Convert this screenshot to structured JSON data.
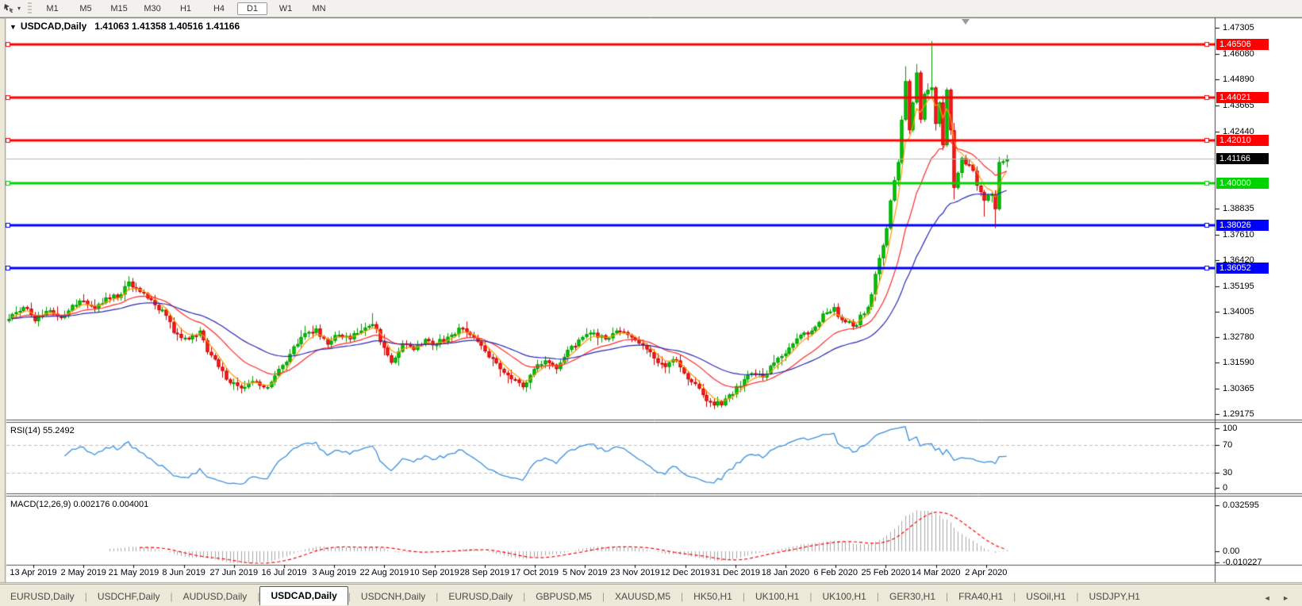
{
  "toolbar": {
    "cursor_tool_caret": "▾",
    "timeframes": [
      {
        "label": "M1",
        "active": false
      },
      {
        "label": "M5",
        "active": false
      },
      {
        "label": "M15",
        "active": false
      },
      {
        "label": "M30",
        "active": false
      },
      {
        "label": "H1",
        "active": false
      },
      {
        "label": "H4",
        "active": false
      },
      {
        "label": "D1",
        "active": true
      },
      {
        "label": "W1",
        "active": false
      },
      {
        "label": "MN",
        "active": false
      }
    ]
  },
  "chart": {
    "header": {
      "dropdown_glyph": "▼",
      "symbol": "USDCAD,Daily",
      "ohlc": "1.41063 1.41358 1.40516 1.41166"
    }
  },
  "indicators": {
    "rsi": {
      "label": "RSI(14) 55.2492"
    },
    "macd": {
      "label": "MACD(12,26,9) 0.002176 0.004001"
    }
  },
  "tabs": {
    "items": [
      {
        "label": "EURUSD,Daily",
        "active": false
      },
      {
        "label": "USDCHF,Daily",
        "active": false
      },
      {
        "label": "AUDUSD,Daily",
        "active": false
      },
      {
        "label": "USDCAD,Daily",
        "active": true
      },
      {
        "label": "USDCNH,Daily",
        "active": false
      },
      {
        "label": "EURUSD,Daily",
        "active": false
      },
      {
        "label": "GBPUSD,M5",
        "active": false
      },
      {
        "label": "XAUUSD,M5",
        "active": false
      },
      {
        "label": "HK50,H1",
        "active": false
      },
      {
        "label": "UK100,H1",
        "active": false
      },
      {
        "label": "UK100,H1",
        "active": false
      },
      {
        "label": "GER30,H1",
        "active": false
      },
      {
        "label": "FRA40,H1",
        "active": false
      },
      {
        "label": "USOil,H1",
        "active": false
      },
      {
        "label": "USDJPY,H1",
        "active": false
      }
    ],
    "nav_arrows": "◄ ►"
  },
  "chart_data": {
    "type": "candlestick",
    "symbol": "USDCAD",
    "timeframe": "Daily",
    "ohlc_display": {
      "open": 1.41063,
      "high": 1.41358,
      "low": 1.40516,
      "close": 1.41166
    },
    "bars": 267,
    "close_keyframes": [
      [
        0,
        1.3365
      ],
      [
        4,
        1.342
      ],
      [
        7,
        1.3355
      ],
      [
        11,
        1.3405
      ],
      [
        14,
        1.337
      ],
      [
        17,
        1.343
      ],
      [
        20,
        1.345
      ],
      [
        23,
        1.3415
      ],
      [
        26,
        1.3465
      ],
      [
        30,
        1.348
      ],
      [
        32,
        1.354
      ],
      [
        34,
        1.351
      ],
      [
        36,
        1.3485
      ],
      [
        39,
        1.343
      ],
      [
        42,
        1.338
      ],
      [
        44,
        1.33
      ],
      [
        48,
        1.327
      ],
      [
        51,
        1.331
      ],
      [
        53,
        1.321
      ],
      [
        56,
        1.314
      ],
      [
        59,
        1.3065
      ],
      [
        62,
        1.304
      ],
      [
        66,
        1.307
      ],
      [
        69,
        1.3045
      ],
      [
        72,
        1.313
      ],
      [
        75,
        1.32
      ],
      [
        78,
        1.328
      ],
      [
        82,
        1.332
      ],
      [
        85,
        1.3245
      ],
      [
        88,
        1.329
      ],
      [
        91,
        1.327
      ],
      [
        94,
        1.331
      ],
      [
        97,
        1.334
      ],
      [
        100,
        1.323
      ],
      [
        102,
        1.316
      ],
      [
        105,
        1.325
      ],
      [
        108,
        1.322
      ],
      [
        111,
        1.327
      ],
      [
        114,
        1.3245
      ],
      [
        118,
        1.329
      ],
      [
        121,
        1.332
      ],
      [
        123,
        1.329
      ],
      [
        126,
        1.324
      ],
      [
        129,
        1.318
      ],
      [
        131,
        1.313
      ],
      [
        135,
        1.308
      ],
      [
        137,
        1.3045
      ],
      [
        140,
        1.313
      ],
      [
        143,
        1.317
      ],
      [
        146,
        1.313
      ],
      [
        149,
        1.322
      ],
      [
        153,
        1.328
      ],
      [
        156,
        1.33
      ],
      [
        159,
        1.327
      ],
      [
        162,
        1.331
      ],
      [
        165,
        1.329
      ],
      [
        168,
        1.325
      ],
      [
        172,
        1.318
      ],
      [
        175,
        1.314
      ],
      [
        178,
        1.317
      ],
      [
        180,
        1.311
      ],
      [
        183,
        1.306
      ],
      [
        186,
        1.298
      ],
      [
        190,
        1.296
      ],
      [
        192,
        1.301
      ],
      [
        195,
        1.305
      ],
      [
        198,
        1.311
      ],
      [
        201,
        1.309
      ],
      [
        204,
        1.316
      ],
      [
        208,
        1.323
      ],
      [
        211,
        1.329
      ],
      [
        214,
        1.331
      ],
      [
        217,
        1.339
      ],
      [
        220,
        1.342
      ],
      [
        222,
        1.336
      ],
      [
        225,
        1.333
      ],
      [
        228,
        1.339
      ],
      [
        230,
        1.348
      ],
      [
        232,
        1.365
      ],
      [
        234,
        1.379
      ],
      [
        235,
        1.392
      ],
      [
        237,
        1.41
      ],
      [
        239,
        1.448
      ],
      [
        240,
        1.425
      ],
      [
        241,
        1.438
      ],
      [
        242,
        1.452
      ],
      [
        243,
        1.43
      ],
      [
        244,
        1.442
      ],
      [
        246,
        1.445
      ],
      [
        247,
        1.428
      ],
      [
        248,
        1.438
      ],
      [
        249,
        1.418
      ],
      [
        250,
        1.444
      ],
      [
        251,
        1.425
      ],
      [
        252,
        1.398
      ],
      [
        253,
        1.405
      ],
      [
        254,
        1.412
      ],
      [
        255,
        1.409
      ],
      [
        257,
        1.406
      ],
      [
        258,
        1.399
      ],
      [
        259,
        1.396
      ],
      [
        260,
        1.392
      ],
      [
        262,
        1.395
      ],
      [
        263,
        1.388
      ],
      [
        264,
        1.41
      ],
      [
        266,
        1.41166
      ]
    ],
    "high_overrides": {
      "32": 1.3565,
      "97": 1.3392,
      "239": 1.455,
      "242": 1.456,
      "246": 1.4668,
      "250": 1.445,
      "264": 1.4125
    },
    "low_overrides": {
      "62": 1.3015,
      "137": 1.3032,
      "186": 1.2952,
      "190": 1.2949,
      "252": 1.3925,
      "260": 1.3845,
      "263": 1.3791
    },
    "horizontal_lines": [
      {
        "price": 1.46506,
        "label": "1.46506",
        "color": "#ff0000"
      },
      {
        "price": 1.44021,
        "label": "1.44021",
        "color": "#ff0000"
      },
      {
        "price": 1.4201,
        "label": "1.42010",
        "color": "#ff0000"
      },
      {
        "price": 1.4,
        "label": "1.40000",
        "color": "#00d400"
      },
      {
        "price": 1.38026,
        "label": "1.38026",
        "color": "#0000ff"
      },
      {
        "price": 1.36052,
        "label": "1.36052",
        "color": "#0000ff"
      }
    ],
    "current_price": {
      "value": 1.41166,
      "label": "1.41166",
      "line_color": "#b8b8b8",
      "badge_bg": "#000000"
    },
    "price_axis_ticks": [
      "1.47305",
      "1.46080",
      "1.44890",
      "1.43665",
      "1.42440",
      "1.38835",
      "1.37610",
      "1.36420",
      "1.35195",
      "1.34005",
      "1.32780",
      "1.31590",
      "1.30365",
      "1.29175"
    ],
    "ylim": [
      1.28928,
      1.47714
    ],
    "moving_averages": [
      {
        "name": "fast",
        "period": 5,
        "color": "#ff9900"
      },
      {
        "name": "medium",
        "period": 18,
        "color": "#ff2a2a"
      },
      {
        "name": "slow",
        "period": 40,
        "color": "#2828b8"
      }
    ],
    "rsi": {
      "period": 14,
      "current": 55.2492,
      "levels": [
        70,
        30
      ],
      "axis_ticks": [
        "100",
        "70",
        "30",
        "0"
      ],
      "line_color": "#3a90e0",
      "level_color": "#c0c0c0"
    },
    "macd": {
      "fast": 12,
      "slow": 26,
      "signal": 9,
      "current_values": [
        0.002176,
        0.004001
      ],
      "axis_ticks": [
        "0.032595",
        "0.00",
        "-0.010227"
      ],
      "hist_color": "#a8a8a8",
      "signal_color": "#ff0000"
    },
    "x_labels": [
      "13 Apr 2019",
      "2 May 2019",
      "21 May 2019",
      "8 Jun 2019",
      "27 Jun 2019",
      "16 Jul 2019",
      "3 Aug 2019",
      "22 Aug 2019",
      "10 Sep 2019",
      "28 Sep 2019",
      "17 Oct 2019",
      "5 Nov 2019",
      "23 Nov 2019",
      "12 Dec 2019",
      "31 Dec 2019",
      "18 Jan 2020",
      "6 Feb 2020",
      "25 Feb 2020",
      "14 Mar 2020",
      "2 Apr 2020"
    ],
    "candle_colors": {
      "bull": "#00cc00",
      "bull_border": "#009900",
      "bear": "#ff2020",
      "bear_border": "#cc0000"
    }
  }
}
